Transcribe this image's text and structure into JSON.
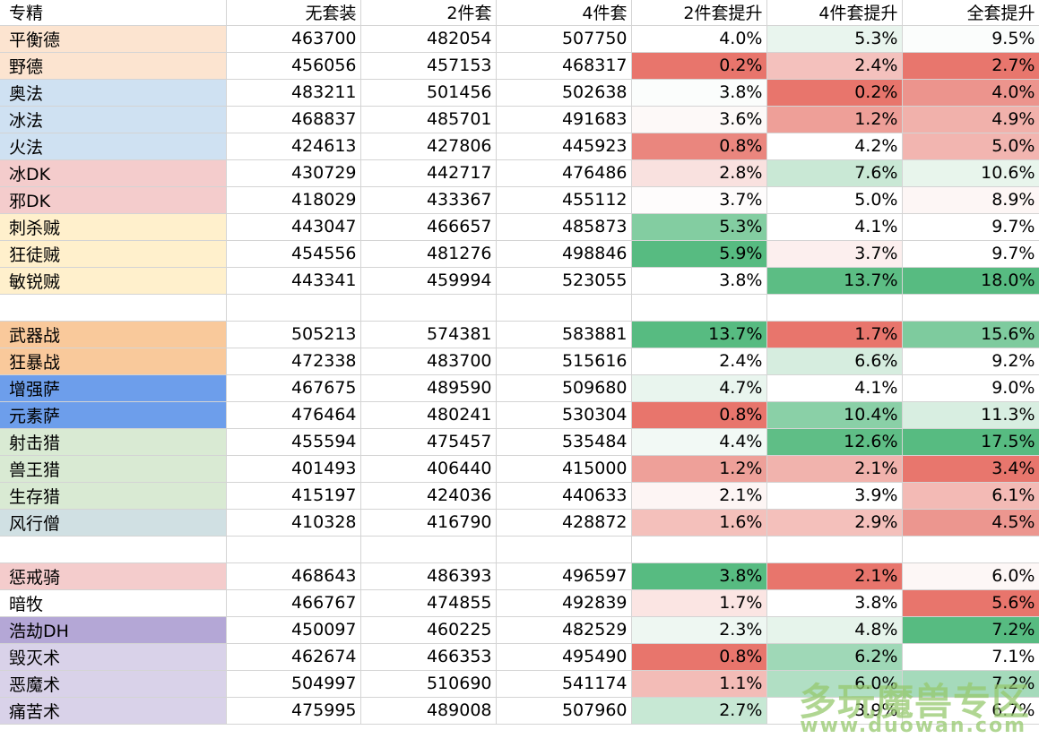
{
  "header": [
    "专精",
    "无套装",
    "2件套",
    "4件套",
    "2件套提升",
    "4件套提升",
    "全套提升"
  ],
  "rows": [
    {
      "name": "平衡德",
      "bg": "#fce4d0",
      "v": [
        "463700",
        "482054",
        "507750"
      ],
      "p": [
        "4.0%",
        "5.3%",
        "9.5%"
      ],
      "pc": [
        "#ffffff",
        "#e9f5ee",
        "#fbfdfc"
      ]
    },
    {
      "name": "野德",
      "bg": "#fce4d0",
      "v": [
        "456056",
        "457153",
        "468317"
      ],
      "p": [
        "0.2%",
        "2.4%",
        "2.7%"
      ],
      "pc": [
        "#e8756c",
        "#f4c1bd",
        "#e8766d"
      ]
    },
    {
      "name": "奥法",
      "bg": "#cfe1f2",
      "v": [
        "483211",
        "501456",
        "502638"
      ],
      "p": [
        "3.8%",
        "0.2%",
        "4.0%"
      ],
      "pc": [
        "#fbfdfc",
        "#e8756c",
        "#ec948d"
      ]
    },
    {
      "name": "冰法",
      "bg": "#cfe1f2",
      "v": [
        "468837",
        "485701",
        "491683"
      ],
      "p": [
        "3.6%",
        "1.2%",
        "4.9%"
      ],
      "pc": [
        "#fdf9f8",
        "#ee9f98",
        "#f1b1ab"
      ]
    },
    {
      "name": "火法",
      "bg": "#cfe1f2",
      "v": [
        "424613",
        "427806",
        "445923"
      ],
      "p": [
        "0.8%",
        "4.2%",
        "5.0%"
      ],
      "pc": [
        "#ea867e",
        "#ffffff",
        "#f2b5b0"
      ]
    },
    {
      "name": "冰DK",
      "bg": "#f4cccc",
      "v": [
        "430729",
        "442717",
        "476486"
      ],
      "p": [
        "2.8%",
        "7.6%",
        "10.6%"
      ],
      "pc": [
        "#f9e1df",
        "#c9e8d5",
        "#e8f5ec"
      ]
    },
    {
      "name": "邪DK",
      "bg": "#f4cccc",
      "v": [
        "418029",
        "433367",
        "455112"
      ],
      "p": [
        "3.7%",
        "5.0%",
        "8.9%"
      ],
      "pc": [
        "#fefcfc",
        "#ffffff",
        "#fdf6f5"
      ]
    },
    {
      "name": "刺杀贼",
      "bg": "#fff0cc",
      "v": [
        "443047",
        "466657",
        "485873"
      ],
      "p": [
        "5.3%",
        "4.1%",
        "9.7%"
      ],
      "pc": [
        "#83cda1",
        "#ffffff",
        "#ffffff"
      ]
    },
    {
      "name": "狂徒贼",
      "bg": "#fff0cc",
      "v": [
        "454556",
        "481276",
        "498846"
      ],
      "p": [
        "5.9%",
        "3.7%",
        "9.7%"
      ],
      "pc": [
        "#57bb81",
        "#fcefee",
        "#ffffff"
      ]
    },
    {
      "name": "敏锐贼",
      "bg": "#fff0cc",
      "v": [
        "443341",
        "459994",
        "523055"
      ],
      "p": [
        "3.8%",
        "13.7%",
        "18.0%"
      ],
      "pc": [
        "#ffffff",
        "#5cbd84",
        "#57bb81"
      ]
    },
    {
      "name": "",
      "bg": "#ffffff",
      "v": [
        "",
        "",
        ""
      ],
      "p": [
        "",
        "",
        ""
      ],
      "pc": [
        "#ffffff",
        "#ffffff",
        "#ffffff"
      ],
      "blank": true
    },
    {
      "name": "武器战",
      "bg": "#f9c99b",
      "v": [
        "505213",
        "574381",
        "583881"
      ],
      "p": [
        "13.7%",
        "1.7%",
        "15.6%"
      ],
      "pc": [
        "#57bb81",
        "#e8756c",
        "#7ecb9e"
      ]
    },
    {
      "name": "狂暴战",
      "bg": "#f9c99b",
      "v": [
        "472338",
        "483700",
        "515616"
      ],
      "p": [
        "2.4%",
        "6.6%",
        "9.2%"
      ],
      "pc": [
        "#ffffff",
        "#d6eddf",
        "#ffffff"
      ]
    },
    {
      "name": "增强萨",
      "bg": "#6d9eeb",
      "v": [
        "467675",
        "489590",
        "509680"
      ],
      "p": [
        "4.7%",
        "4.1%",
        "9.0%"
      ],
      "pc": [
        "#e9f5ee",
        "#ffffff",
        "#ffffff"
      ]
    },
    {
      "name": "元素萨",
      "bg": "#6d9eeb",
      "v": [
        "476464",
        "480241",
        "530304"
      ],
      "p": [
        "0.8%",
        "10.4%",
        "11.3%"
      ],
      "pc": [
        "#e8756c",
        "#8ad0a7",
        "#d8eee1"
      ]
    },
    {
      "name": "射击猎",
      "bg": "#d9ead3",
      "v": [
        "455594",
        "475457",
        "535484"
      ],
      "p": [
        "4.4%",
        "12.6%",
        "17.5%"
      ],
      "pc": [
        "#f2f9f5",
        "#5fbe86",
        "#57bb81"
      ]
    },
    {
      "name": "兽王猎",
      "bg": "#d9ead3",
      "v": [
        "401493",
        "406440",
        "415000"
      ],
      "p": [
        "1.2%",
        "2.1%",
        "3.4%"
      ],
      "pc": [
        "#eea099",
        "#f1b3ad",
        "#e8766d"
      ]
    },
    {
      "name": "生存猎",
      "bg": "#d9ead3",
      "v": [
        "415197",
        "424036",
        "440633"
      ],
      "p": [
        "2.1%",
        "3.9%",
        "6.1%"
      ],
      "pc": [
        "#fdf5f4",
        "#ffffff",
        "#f3bab5"
      ]
    },
    {
      "name": "风行僧",
      "bg": "#d0e0e3",
      "v": [
        "410328",
        "416790",
        "428872"
      ],
      "p": [
        "1.6%",
        "2.9%",
        "4.5%"
      ],
      "pc": [
        "#f4c0bb",
        "#f4c0bb",
        "#ec968f"
      ]
    },
    {
      "name": "",
      "bg": "#ffffff",
      "v": [
        "",
        "",
        ""
      ],
      "p": [
        "",
        "",
        ""
      ],
      "pc": [
        "#ffffff",
        "#ffffff",
        "#ffffff"
      ],
      "blank": true
    },
    {
      "name": "惩戒骑",
      "bg": "#f4cccc",
      "v": [
        "468643",
        "486393",
        "496597"
      ],
      "p": [
        "3.8%",
        "2.1%",
        "6.0%"
      ],
      "pc": [
        "#57bb81",
        "#e8756c",
        "#fdf7f6"
      ]
    },
    {
      "name": "暗牧",
      "bg": "#ffffff",
      "v": [
        "466767",
        "474855",
        "492839"
      ],
      "p": [
        "1.7%",
        "3.8%",
        "5.6%"
      ],
      "pc": [
        "#fbe5e3",
        "#ffffff",
        "#e8756c"
      ]
    },
    {
      "name": "浩劫DH",
      "bg": "#b4a7d6",
      "v": [
        "450097",
        "460225",
        "482529"
      ],
      "p": [
        "2.3%",
        "4.8%",
        "7.2%"
      ],
      "pc": [
        "#eef7f2",
        "#e6f4eb",
        "#57bb81"
      ]
    },
    {
      "name": "毁灭术",
      "bg": "#d9d2e9",
      "v": [
        "462674",
        "466353",
        "495490"
      ],
      "p": [
        "0.8%",
        "6.2%",
        "7.1%"
      ],
      "pc": [
        "#e8756c",
        "#9fd8b7",
        "#ffffff"
      ]
    },
    {
      "name": "恶魔术",
      "bg": "#d9d2e9",
      "v": [
        "504997",
        "510690",
        "541174"
      ],
      "p": [
        "1.1%",
        "6.0%",
        "7.2%"
      ],
      "pc": [
        "#f3bcb7",
        "#b1dfc4",
        "#a5dabb"
      ]
    },
    {
      "name": "痛苦术",
      "bg": "#d9d2e9",
      "v": [
        "475995",
        "489008",
        "507960"
      ],
      "p": [
        "2.7%",
        "3.9%",
        "6.7%"
      ],
      "pc": [
        "#c7e8d4",
        "#ffffff",
        "#ffffff"
      ]
    }
  ],
  "watermark": {
    "title": "多玩魔兽专区",
    "url": "www.duowan.com"
  }
}
